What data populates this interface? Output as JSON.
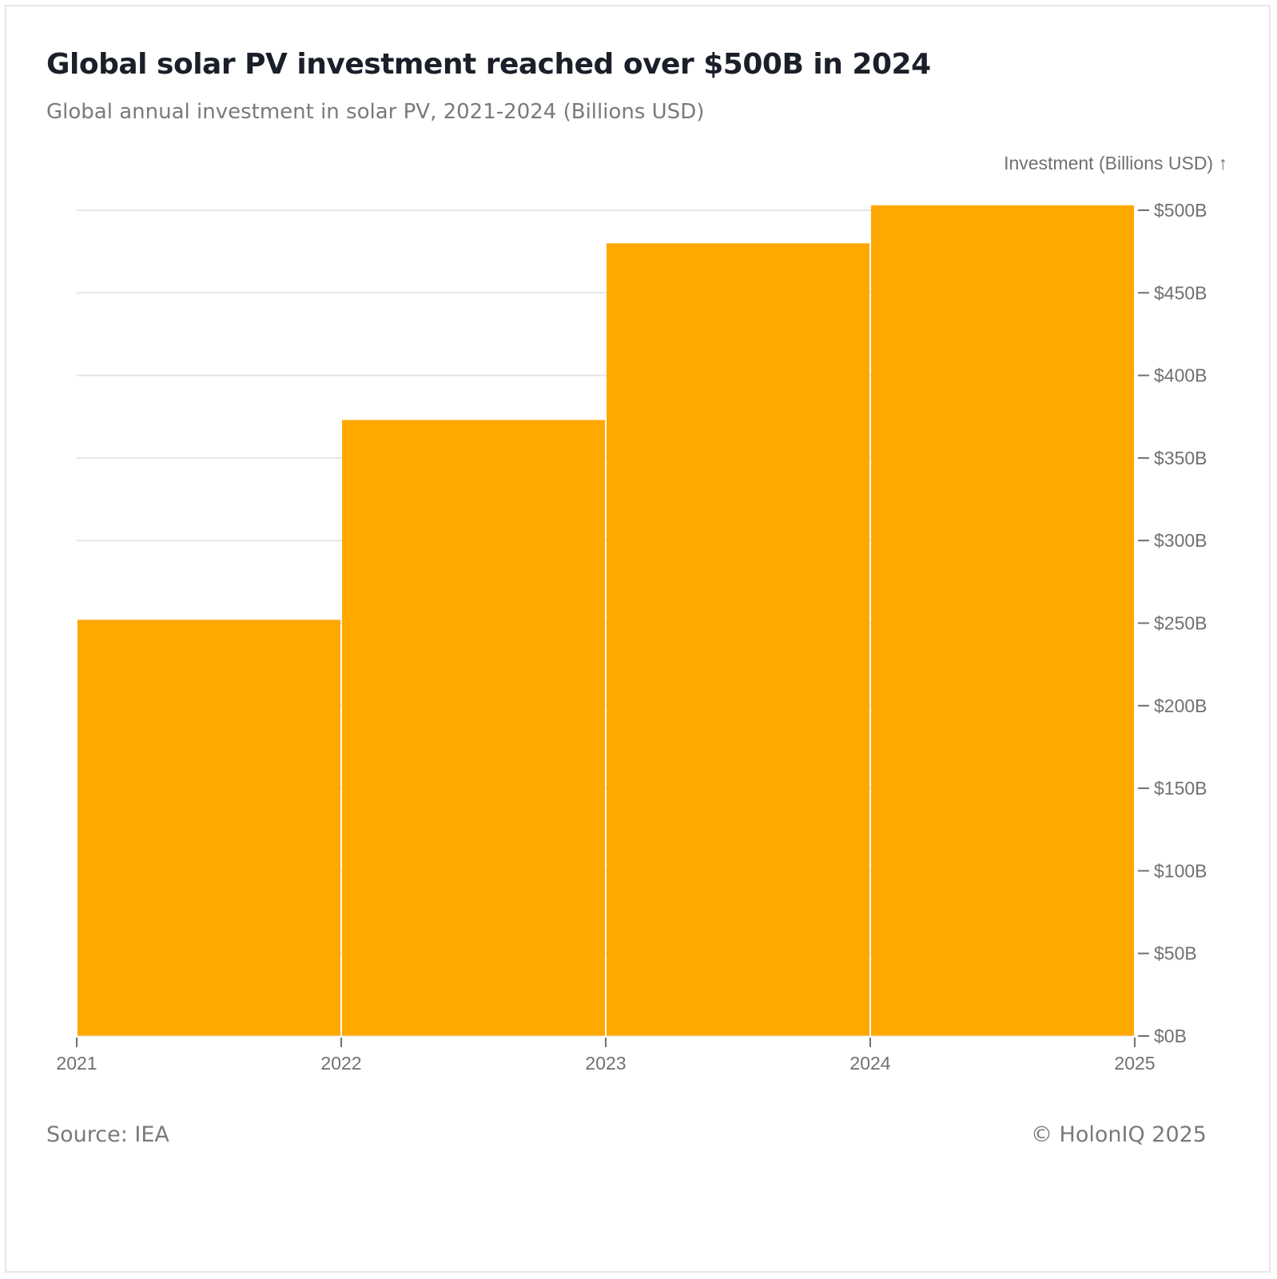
{
  "header": {
    "title": "Global solar PV investment reached over $500B in 2024",
    "subtitle": "Global annual investment in solar PV, 2021-2024 (Billions USD)"
  },
  "footer": {
    "source": "Source: IEA",
    "credit": "© HolonIQ 2025"
  },
  "colors": {
    "bar": "#FFA800",
    "grid": "#e6e6e6",
    "axis": "#707070"
  },
  "chart_data": {
    "type": "bar",
    "title": "Global solar PV investment reached over $500B in 2024",
    "subtitle": "Global annual investment in solar PV, 2021-2024 (Billions USD)",
    "xlabel": "",
    "ylabel": "Investment (Billions USD) ↑",
    "categories": [
      "2021",
      "2022",
      "2023",
      "2024"
    ],
    "x_edges": [
      2021,
      2022,
      2023,
      2024,
      2025
    ],
    "x_tick_labels": [
      "2021",
      "2022",
      "2023",
      "2024",
      "2025"
    ],
    "values": [
      252,
      373,
      480,
      503
    ],
    "ylim": [
      0,
      500
    ],
    "y_ticks": [
      0,
      50,
      100,
      150,
      200,
      250,
      300,
      350,
      400,
      450,
      500
    ],
    "y_tick_labels": [
      "$0B",
      "$50B",
      "$100B",
      "$150B",
      "$200B",
      "$250B",
      "$300B",
      "$350B",
      "$400B",
      "$450B",
      "$500B"
    ],
    "y_axis_position": "right",
    "grid": true,
    "legend": "none"
  }
}
